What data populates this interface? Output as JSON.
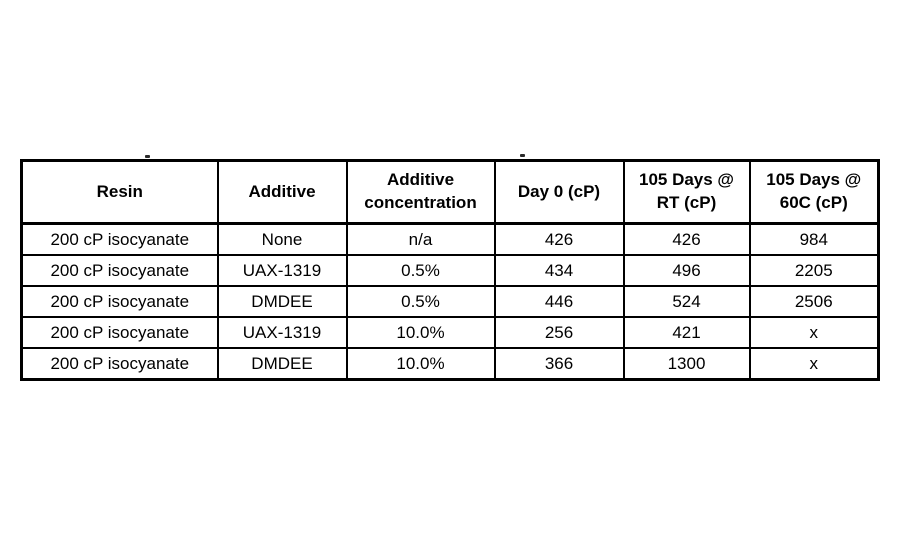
{
  "table": {
    "columns": [
      "Resin",
      "Additive",
      "Additive concentration",
      "Day 0 (cP)",
      "105 Days @ RT (cP)",
      "105 Days @ 60C (cP)"
    ],
    "rows": [
      [
        "200 cP isocyanate",
        "None",
        "n/a",
        "426",
        "426",
        "984"
      ],
      [
        "200 cP isocyanate",
        "UAX-1319",
        "0.5%",
        "434",
        "496",
        "2205"
      ],
      [
        "200 cP isocyanate",
        "DMDEE",
        "0.5%",
        "446",
        "524",
        "2506"
      ],
      [
        "200 cP isocyanate",
        "UAX-1319",
        "10.0%",
        "256",
        "421",
        "x"
      ],
      [
        "200 cP isocyanate",
        "DMDEE",
        "10.0%",
        "366",
        "1300",
        "x"
      ]
    ]
  },
  "colors": {
    "background": "#ffffff",
    "border": "#000000",
    "text": "#000000"
  }
}
